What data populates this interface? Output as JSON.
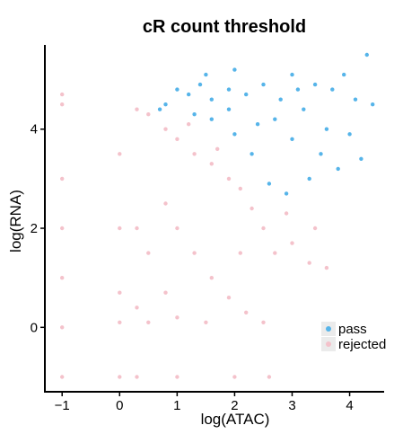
{
  "chart_data": {
    "type": "scatter",
    "title": "cR count threshold",
    "xlabel": "log(ATAC)",
    "ylabel": "log(RNA)",
    "xlim": [
      -1.3,
      4.6
    ],
    "ylim": [
      -1.3,
      5.7
    ],
    "xticks": [
      {
        "value": -1,
        "label": "−1"
      },
      {
        "value": 0,
        "label": "0"
      },
      {
        "value": 1,
        "label": "1"
      },
      {
        "value": 2,
        "label": "2"
      },
      {
        "value": 3,
        "label": "3"
      },
      {
        "value": 4,
        "label": "4"
      }
    ],
    "yticks": [
      {
        "value": 0,
        "label": "0"
      },
      {
        "value": 2,
        "label": "2"
      },
      {
        "value": 4,
        "label": "4"
      }
    ],
    "grid": false,
    "legend_position": "right",
    "series": [
      {
        "name": "pass",
        "color": "#56B4E9",
        "points": [
          [
            0.7,
            4.4
          ],
          [
            0.8,
            4.5
          ],
          [
            1.0,
            4.8
          ],
          [
            1.2,
            4.7
          ],
          [
            1.4,
            4.9
          ],
          [
            1.6,
            4.6
          ],
          [
            1.9,
            4.8
          ],
          [
            2.2,
            4.7
          ],
          [
            2.5,
            4.9
          ],
          [
            2.8,
            4.6
          ],
          [
            3.1,
            4.8
          ],
          [
            3.4,
            4.9
          ],
          [
            3.7,
            4.8
          ],
          [
            3.9,
            5.1
          ],
          [
            4.1,
            4.6
          ],
          [
            4.3,
            5.5
          ],
          [
            4.4,
            4.5
          ],
          [
            4.2,
            3.4
          ],
          [
            3.8,
            3.2
          ],
          [
            3.3,
            3.0
          ],
          [
            2.9,
            2.7
          ],
          [
            2.6,
            2.9
          ],
          [
            2.3,
            3.5
          ],
          [
            2.0,
            3.9
          ],
          [
            1.6,
            4.2
          ],
          [
            1.3,
            4.3
          ],
          [
            1.9,
            4.4
          ],
          [
            2.7,
            4.2
          ],
          [
            3.0,
            3.8
          ],
          [
            3.6,
            4.0
          ],
          [
            4.0,
            3.9
          ],
          [
            3.5,
            3.5
          ],
          [
            2.4,
            4.1
          ],
          [
            3.2,
            4.4
          ],
          [
            1.5,
            5.1
          ],
          [
            2.0,
            5.2
          ],
          [
            3.0,
            5.1
          ]
        ]
      },
      {
        "name": "rejected",
        "color": "#F4C2CB",
        "points": [
          [
            -1.0,
            4.7
          ],
          [
            -1.0,
            4.5
          ],
          [
            -1.0,
            3.0
          ],
          [
            -1.0,
            2.0
          ],
          [
            -1.0,
            1.0
          ],
          [
            -1.0,
            0.0
          ],
          [
            -1.0,
            -1.0
          ],
          [
            0.0,
            3.5
          ],
          [
            0.0,
            2.0
          ],
          [
            0.0,
            0.7
          ],
          [
            0.0,
            0.1
          ],
          [
            0.0,
            -1.0
          ],
          [
            0.3,
            4.4
          ],
          [
            0.3,
            2.0
          ],
          [
            0.3,
            0.4
          ],
          [
            0.3,
            -1.0
          ],
          [
            0.5,
            4.3
          ],
          [
            0.5,
            1.5
          ],
          [
            0.5,
            0.1
          ],
          [
            0.8,
            4.0
          ],
          [
            0.8,
            2.5
          ],
          [
            0.8,
            0.7
          ],
          [
            1.0,
            3.8
          ],
          [
            1.0,
            2.0
          ],
          [
            1.0,
            0.2
          ],
          [
            1.0,
            -1.0
          ],
          [
            1.3,
            3.5
          ],
          [
            1.3,
            1.5
          ],
          [
            1.6,
            3.3
          ],
          [
            1.6,
            1.0
          ],
          [
            1.9,
            3.0
          ],
          [
            1.9,
            0.6
          ],
          [
            2.1,
            2.8
          ],
          [
            2.1,
            1.5
          ],
          [
            2.3,
            2.4
          ],
          [
            2.5,
            2.0
          ],
          [
            2.5,
            0.1
          ],
          [
            2.7,
            1.5
          ],
          [
            2.9,
            2.3
          ],
          [
            3.0,
            1.7
          ],
          [
            3.3,
            1.3
          ],
          [
            3.6,
            1.2
          ],
          [
            3.4,
            2.0
          ],
          [
            2.0,
            -1.0
          ],
          [
            2.6,
            -1.0
          ],
          [
            1.5,
            0.1
          ],
          [
            2.2,
            0.3
          ],
          [
            1.2,
            4.1
          ],
          [
            1.7,
            3.6
          ]
        ]
      }
    ]
  }
}
